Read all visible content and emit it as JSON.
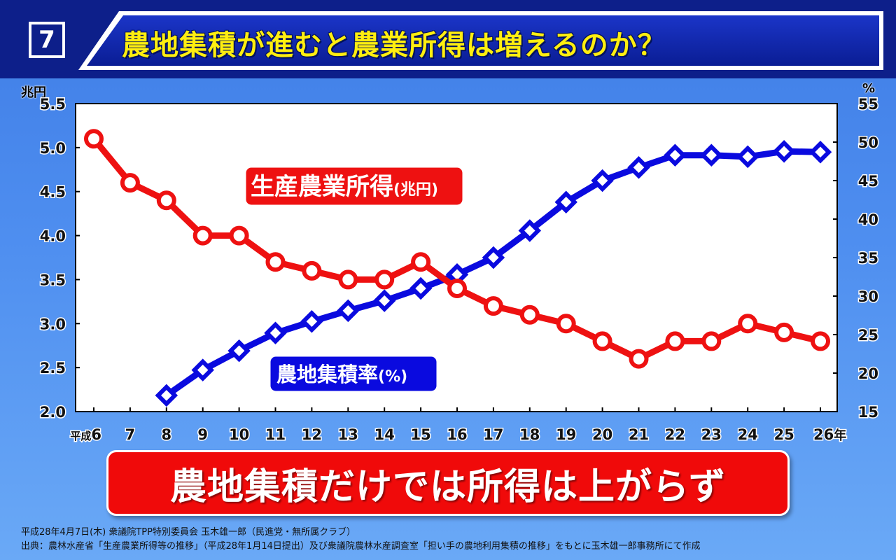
{
  "slide": {
    "number": "7",
    "title": "農地集積が進むと農業所得は増えるのか？"
  },
  "chart_data": {
    "type": "line",
    "title": "",
    "xlabel": "",
    "ylabel_left": "兆円",
    "ylabel_right": "%",
    "x": [
      "平成6",
      "7",
      "8",
      "9",
      "10",
      "11",
      "12",
      "13",
      "14",
      "15",
      "16",
      "17",
      "18",
      "19",
      "20",
      "21",
      "22",
      "23",
      "24",
      "25",
      "26年"
    ],
    "ylim_left": [
      2.0,
      5.5
    ],
    "yticks_left": [
      "2.0",
      "2.5",
      "3.0",
      "3.5",
      "4.0",
      "4.5",
      "5.0",
      "5.5"
    ],
    "ylim_right": [
      15,
      55
    ],
    "yticks_right": [
      "15",
      "20",
      "25",
      "30",
      "35",
      "40",
      "45",
      "50",
      "55"
    ],
    "grid": false,
    "series": [
      {
        "name": "生産農業所得(兆円)",
        "axis": "left",
        "color": "#ee1111",
        "marker": "circle",
        "values": [
          5.1,
          4.6,
          4.4,
          4.0,
          4.0,
          3.7,
          3.6,
          3.5,
          3.5,
          3.7,
          3.4,
          3.2,
          3.1,
          3.0,
          2.8,
          2.6,
          2.8,
          2.8,
          3.0,
          2.9,
          2.8
        ]
      },
      {
        "name": "農地集積率(%)",
        "axis": "right",
        "color": "#0a0adf",
        "marker": "diamond",
        "values": [
          null,
          null,
          17.1,
          20.4,
          22.9,
          25.2,
          26.7,
          28.1,
          29.4,
          31.0,
          32.8,
          35.0,
          38.5,
          42.2,
          45.0,
          46.7,
          48.3,
          48.3,
          48.1,
          48.8,
          48.7
        ]
      }
    ]
  },
  "labels": {
    "income_main": "生産農業所得",
    "income_unit": "(兆円)",
    "rate_main": "農地集積率",
    "rate_unit": "(%)"
  },
  "conclusion": "農地集積だけでは所得は上がらず",
  "footnotes": {
    "line1": "平成28年4月7日(木) 衆議院TPP特別委員会 玉木雄一郎（民進党・無所属クラブ）",
    "line2": "出典：農林水産省「生産農業所得等の推移」（平成28年1月14日提出）及び衆議院農林水産調査室「担い手の農地利用集積の推移」をもとに玉木雄一郎事務所にて作成"
  }
}
